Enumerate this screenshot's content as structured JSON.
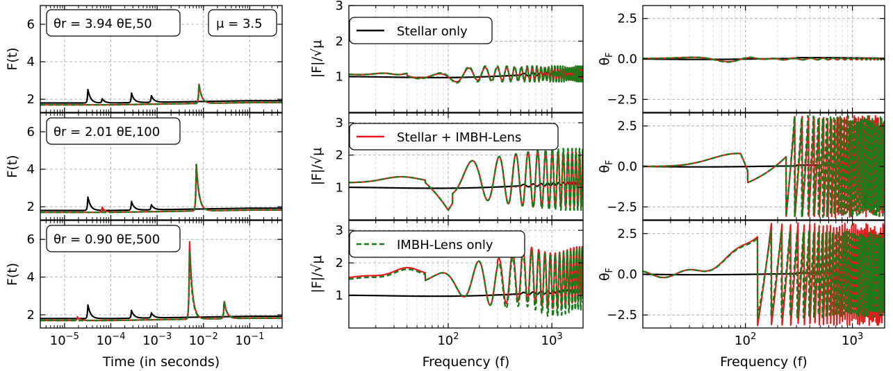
{
  "colors": {
    "stellar": "#000000",
    "combined": "#e41a1c",
    "imbh": "#1a7a1a",
    "grid": "#b0b0b0"
  },
  "legend": {
    "stellar_label": "Stellar only",
    "combined_label": "Stellar + IMBH-Lens",
    "imbh_label": "IMBH-Lens only"
  },
  "columns": {
    "time": {
      "xlabel": "Time (in seconds)",
      "ylabel": "F(t)"
    },
    "amplitude": {
      "xlabel": "Frequency (f)",
      "ylabel": "|F|/√μ"
    },
    "phase": {
      "xlabel": "Frequency (f)",
      "ylabel": "θ_F"
    }
  },
  "rows": [
    {
      "annotation": "θr = 3.94 θE,50",
      "mu_label": "μ = 3.5"
    },
    {
      "annotation": "θr = 2.01 θE,100"
    },
    {
      "annotation": "θr = 0.90 θE,500"
    }
  ],
  "chart_data": [
    {
      "type": "line",
      "panel": "time-row-1",
      "xscale": "log",
      "xlim": [
        3e-06,
        0.5
      ],
      "ylim": [
        1.3,
        7
      ],
      "xticks": [
        "10⁻⁵",
        "10⁻⁴",
        "10⁻³",
        "10⁻²",
        "10⁻¹"
      ],
      "yticks": [
        2,
        4,
        6
      ],
      "series": [
        {
          "name": "Stellar only",
          "peaks": [
            [
              3.2e-05,
              2.55
            ],
            [
              6.5e-05,
              2.0
            ],
            [
              0.00028,
              2.3
            ],
            [
              0.00075,
              2.15
            ]
          ],
          "baseline": 1.75
        },
        {
          "name": "Stellar + IMBH-Lens",
          "peaks": [
            [
              0.008,
              2.85
            ]
          ],
          "baseline": 1.7
        },
        {
          "name": "IMBH-Lens only",
          "peaks": [
            [
              0.008,
              2.85
            ]
          ],
          "baseline": 1.7
        }
      ]
    },
    {
      "type": "line",
      "panel": "time-row-2",
      "xscale": "log",
      "xlim": [
        3e-06,
        0.5
      ],
      "ylim": [
        1.3,
        7
      ],
      "yticks": [
        2,
        4,
        6
      ],
      "series": [
        {
          "name": "Stellar only",
          "peaks": [
            [
              3.2e-05,
              2.55
            ],
            [
              0.00028,
              2.25
            ],
            [
              0.00075,
              2.05
            ]
          ],
          "baseline": 1.75
        },
        {
          "name": "Stellar + IMBH-Lens",
          "peaks": [
            [
              6.5e-05,
              2.0
            ],
            [
              0.007,
              4.5
            ]
          ],
          "baseline": 1.7
        },
        {
          "name": "IMBH-Lens only",
          "peaks": [
            [
              0.007,
              4.5
            ]
          ],
          "baseline": 1.7
        }
      ]
    },
    {
      "type": "line",
      "panel": "time-row-3",
      "xscale": "log",
      "xlim": [
        3e-06,
        0.5
      ],
      "ylim": [
        1.3,
        7
      ],
      "xlabel": "Time (in seconds)",
      "yticks": [
        2,
        4,
        6
      ],
      "series": [
        {
          "name": "Stellar only",
          "peaks": [
            [
              3.2e-05,
              2.55
            ],
            [
              0.00028,
              2.2
            ],
            [
              0.00075,
              2.05
            ]
          ],
          "baseline": 1.75
        },
        {
          "name": "Stellar + IMBH-Lens",
          "peaks": [
            [
              1.9e-05,
              1.9
            ],
            [
              0.005,
              6.4
            ],
            [
              0.028,
              2.75
            ]
          ],
          "baseline": 1.7
        },
        {
          "name": "IMBH-Lens only",
          "peaks": [
            [
              0.005,
              5.8
            ],
            [
              0.028,
              2.75
            ]
          ],
          "baseline": 1.7
        }
      ]
    },
    {
      "type": "line",
      "panel": "amplitude-row-1",
      "xscale": "log",
      "xlim": [
        11,
        2000
      ],
      "ylim": [
        0,
        3
      ],
      "yticks": [
        1,
        2,
        3
      ],
      "series": [
        {
          "name": "Stellar only",
          "model": {
            "base": 1.0,
            "slope": 0.05
          }
        },
        {
          "name": "Stellar + IMBH-Lens",
          "model": {
            "base": 1.08,
            "amp_low": 0.07,
            "amp_high": 0.18,
            "f_start": 60,
            "period": 70
          }
        },
        {
          "name": "IMBH-Lens only",
          "model": {
            "base": 1.08,
            "amp_low": 0.07,
            "amp_high": 0.22,
            "f_start": 60,
            "period": 70
          }
        }
      ]
    },
    {
      "type": "line",
      "panel": "amplitude-row-2",
      "xscale": "log",
      "xlim": [
        11,
        2000
      ],
      "ylim": [
        0,
        3.3
      ],
      "yticks": [
        1,
        2,
        3
      ],
      "series": [
        {
          "name": "Stellar only",
          "model": {
            "base": 1.0,
            "slope": 0.05
          }
        },
        {
          "name": "Stellar + IMBH-Lens",
          "model": {
            "base": 1.15,
            "dip_at": 100,
            "amp": 0.85,
            "period": 140
          }
        },
        {
          "name": "IMBH-Lens only",
          "model": {
            "base": 1.15,
            "dip_at": 100,
            "amp": 0.95,
            "period": 140
          }
        }
      ]
    },
    {
      "type": "line",
      "panel": "amplitude-row-3",
      "xscale": "log",
      "xlim": [
        11,
        2000
      ],
      "ylim": [
        0,
        3.3
      ],
      "xlabel": "Frequency (f)",
      "yticks": [
        1,
        2,
        3
      ],
      "series": [
        {
          "name": "Stellar only",
          "model": {
            "base": 1.0,
            "slope": 0.05
          }
        },
        {
          "name": "Stellar + IMBH-Lens",
          "model": {
            "base": 1.55,
            "amp": 0.85,
            "period": 110
          }
        },
        {
          "name": "IMBH-Lens only",
          "model": {
            "base": 1.5,
            "amp": 0.95,
            "period": 110
          }
        }
      ]
    },
    {
      "type": "line",
      "panel": "phase-row-1",
      "xscale": "log",
      "xlim": [
        11,
        2000
      ],
      "ylim": [
        -3.3,
        3.3
      ],
      "yticks": [
        2.5,
        0.0,
        -2.5
      ],
      "series": [
        {
          "name": "Stellar only",
          "model": {
            "base": 0.0
          }
        },
        {
          "name": "Stellar + IMBH-Lens",
          "model": {
            "amp": 0.15
          }
        },
        {
          "name": "IMBH-Lens only",
          "model": {
            "amp": 0.18
          }
        }
      ]
    },
    {
      "type": "line",
      "panel": "phase-row-2",
      "xscale": "log",
      "xlim": [
        11,
        2000
      ],
      "ylim": [
        -3.3,
        3.3
      ],
      "yticks": [
        2.5,
        0.0,
        -2.5
      ],
      "series": [
        {
          "name": "Stellar only",
          "model": {
            "base": 0.0
          }
        },
        {
          "name": "Stellar + IMBH-Lens",
          "model": {
            "wrap_start": 240,
            "peak_at": 85,
            "peak": 0.8
          }
        },
        {
          "name": "IMBH-Lens only",
          "model": {
            "wrap_start": 240,
            "peak_at": 85,
            "peak": 0.8
          }
        }
      ]
    },
    {
      "type": "line",
      "panel": "phase-row-3",
      "xscale": "log",
      "xlim": [
        11,
        2000
      ],
      "ylim": [
        -3.3,
        3.3
      ],
      "xlabel": "Frequency (f)",
      "yticks": [
        2.5,
        0.0,
        -2.5
      ],
      "series": [
        {
          "name": "Stellar only",
          "model": {
            "base": 0.0
          }
        },
        {
          "name": "Stellar + IMBH-Lens",
          "model": {
            "wrap_start": 130,
            "ramp_peak": 2.5
          }
        },
        {
          "name": "IMBH-Lens only",
          "model": {
            "wrap_start": 130,
            "ramp_peak": 2.4
          }
        }
      ]
    }
  ]
}
